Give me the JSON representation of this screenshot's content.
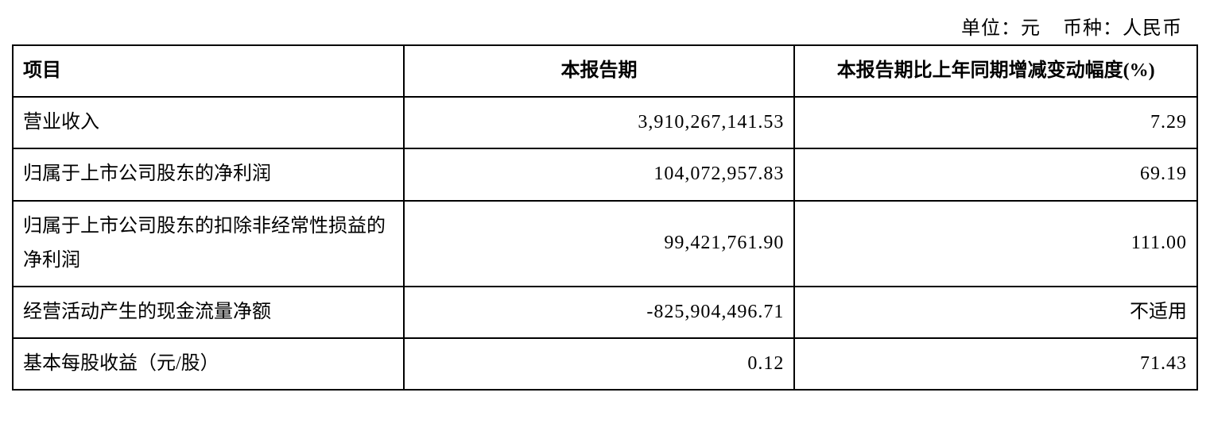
{
  "caption": {
    "unit_label": "单位：元",
    "currency_label": "币种：人民币"
  },
  "table": {
    "headers": {
      "item": "项目",
      "value": "本报告期",
      "change": "本报告期比上年同期增减变动幅度(%)"
    },
    "rows": [
      {
        "item": "营业收入",
        "value": "3,910,267,141.53",
        "change": "7.29"
      },
      {
        "item": "归属于上市公司股东的净利润",
        "value": "104,072,957.83",
        "change": "69.19"
      },
      {
        "item": "归属于上市公司股东的扣除非经常性损益的净利润",
        "value": "99,421,761.90",
        "change": "111.00"
      },
      {
        "item": "经营活动产生的现金流量净额",
        "value": "-825,904,496.71",
        "change": "不适用"
      },
      {
        "item": "基本每股收益（元/股）",
        "value": "0.12",
        "change": "71.43"
      }
    ]
  },
  "styling": {
    "border_color": "#000000",
    "background_color": "#ffffff",
    "text_color": "#000000",
    "font_size_body": 24,
    "font_size_caption": 24,
    "col_widths_pct": [
      33,
      33,
      34
    ],
    "row_line_height": 1.8
  }
}
